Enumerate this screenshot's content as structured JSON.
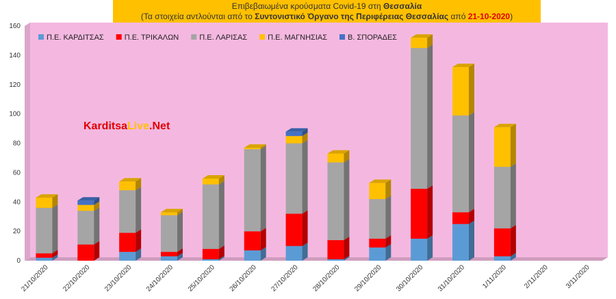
{
  "title": {
    "line1_prefix": "Επιβεβαιωμένα κρούσματα Covid-19 στη ",
    "line1_region": "Θεσσαλία",
    "line2_prefix": "(Τα στοιχεία αντλούνται από το ",
    "line2_source": "Συντονιστικό Όργανο της Περιφέρειας Θεσσαλίας",
    "line2_mid": " από ",
    "line2_date": "21-10-2020",
    "line2_suffix": ")"
  },
  "watermark": {
    "part1": "Karditsa",
    "part2": "Live",
    "part3": ".Net"
  },
  "colors": {
    "plot_background": "#f4b8e0",
    "karditsa": "#5b9bd5",
    "trikala": "#ff0000",
    "larisa": "#a5a5a5",
    "magnisia": "#ffc000",
    "sporades": "#4472c4",
    "title_bg": "#ffc000"
  },
  "chart_data": {
    "type": "bar",
    "stacked": true,
    "three_d": true,
    "categories": [
      "21/10/2020",
      "22/10/2020",
      "23/10/2020",
      "24/10/2020",
      "25/10/2020",
      "26/10/2020",
      "27/10/2020",
      "28/10/2020",
      "29/10/2020",
      "30/10/2020",
      "31/10/2020",
      "1/11/2020",
      "2/11/2020",
      "3/11/2020"
    ],
    "series": [
      {
        "name": "Π.Ε. ΚΑΡΔΙΤΣΑΣ",
        "color_key": "karditsa",
        "values": [
          2,
          0,
          6,
          3,
          1,
          7,
          10,
          1,
          9,
          15,
          25,
          3,
          0,
          0
        ]
      },
      {
        "name": "Π.Ε. ΤΡΙΚΑΛΩΝ",
        "color_key": "trikala",
        "values": [
          3,
          11,
          13,
          3,
          7,
          13,
          22,
          13,
          6,
          34,
          8,
          19,
          0,
          0
        ]
      },
      {
        "name": "Π.Ε. ΛΑΡΙΣΑΣ",
        "color_key": "larisa",
        "values": [
          31,
          23,
          29,
          25,
          44,
          56,
          48,
          53,
          27,
          96,
          66,
          42,
          0,
          0
        ]
      },
      {
        "name": "Π.Ε. ΜΑΓΝΗΣΙΑΣ",
        "color_key": "magnisia",
        "values": [
          7,
          4,
          6,
          2,
          4,
          1,
          5,
          6,
          11,
          7,
          33,
          27,
          0,
          0
        ]
      },
      {
        "name": "Β. ΣΠΟΡΑΔΕΣ",
        "color_key": "sporades",
        "values": [
          0,
          3,
          0,
          0,
          0,
          0,
          3,
          0,
          0,
          0,
          0,
          0,
          0,
          0
        ]
      }
    ],
    "y_ticks": [
      0,
      20,
      40,
      60,
      80,
      100,
      120,
      140,
      160
    ],
    "ylim": [
      0,
      160
    ],
    "legend_position": "top-left",
    "grid": false
  }
}
